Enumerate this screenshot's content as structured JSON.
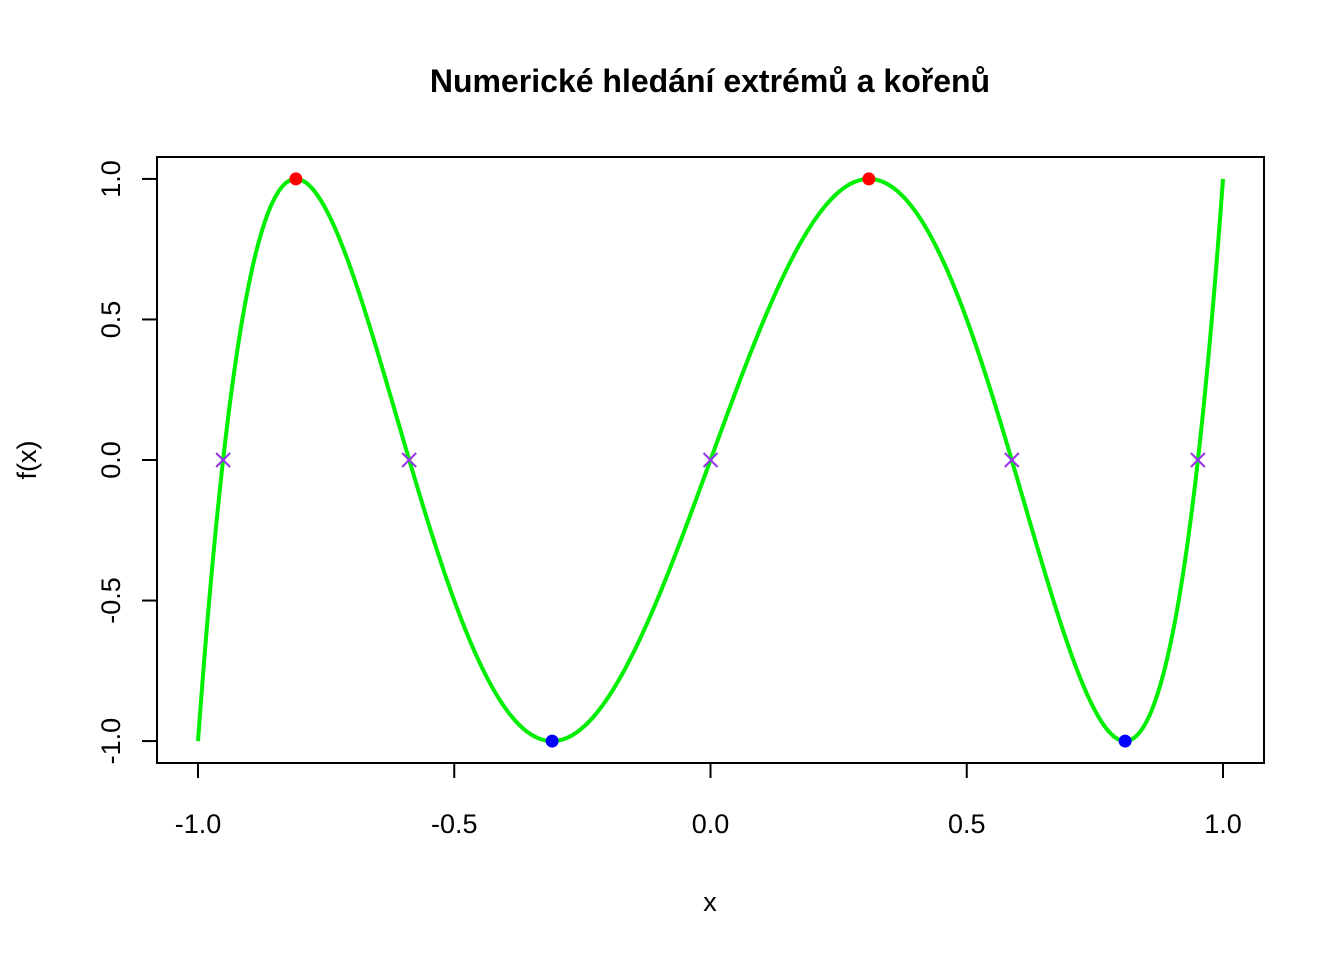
{
  "chart_data": {
    "type": "line",
    "title": "Numerické hledání extrémů a kořenů",
    "xlabel": "x",
    "ylabel": "f(x)",
    "xlim": [
      -1.08,
      1.08
    ],
    "ylim": [
      -1.078,
      1.078
    ],
    "x_ticks": [
      -1.0,
      -0.5,
      0.0,
      0.5,
      1.0
    ],
    "x_tick_labels": [
      "-1.0",
      "-0.5",
      "0.0",
      "0.5",
      "1.0"
    ],
    "y_ticks": [
      -1.0,
      -0.5,
      0.0,
      0.5,
      1.0
    ],
    "y_tick_labels": [
      "-1.0",
      "-0.5",
      "0.0",
      "0.5",
      "1.0"
    ],
    "grid": false,
    "curve": {
      "function": "cos(5*arccos(x))",
      "x_range": [
        -1,
        1
      ],
      "color": "#00ee00"
    },
    "maxima": {
      "color": "#ff0000",
      "marker": "filled-circle",
      "points": [
        {
          "x": -0.809,
          "y": 1.0
        },
        {
          "x": 0.309,
          "y": 1.0
        }
      ]
    },
    "minima": {
      "color": "#0000ff",
      "marker": "filled-circle",
      "points": [
        {
          "x": -0.309,
          "y": -1.0
        },
        {
          "x": 0.809,
          "y": -1.0
        }
      ]
    },
    "roots": {
      "color": "#9933ee",
      "marker": "cross",
      "points": [
        {
          "x": -0.951,
          "y": 0.0
        },
        {
          "x": -0.588,
          "y": 0.0
        },
        {
          "x": 0.0,
          "y": 0.0
        },
        {
          "x": 0.588,
          "y": 0.0
        },
        {
          "x": 0.951,
          "y": 0.0
        }
      ]
    }
  }
}
